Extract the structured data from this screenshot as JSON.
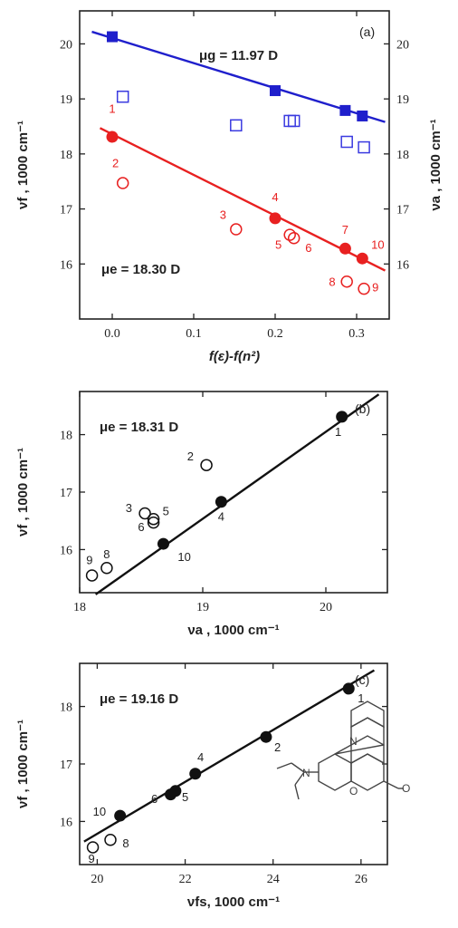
{
  "chart_data": [
    {
      "type": "scatter",
      "panel_label": "(a)",
      "xlabel": "f(ε)-f(n²)",
      "ylabel_left": "νf , 1000 cm⁻¹",
      "ylabel_right": "νa , 1000 cm⁻¹",
      "xlim": [
        -0.04,
        0.34
      ],
      "ylim": [
        15.0,
        20.6
      ],
      "xticks": [
        0.0,
        0.1,
        0.2,
        0.3
      ],
      "xtick_labels": [
        "0.0",
        "0.1",
        "0.2",
        "0.3"
      ],
      "yticks": [
        16,
        17,
        18,
        19,
        20
      ],
      "ytick_labels": [
        "16",
        "17",
        "18",
        "19",
        "20"
      ],
      "annotations": [
        "μg = 11.97 D",
        "μe = 18.30 D"
      ],
      "series": [
        {
          "name": "",
          "marker": "filled-square",
          "color": "#1f1fcc",
          "x": [
            0.0,
            0.2,
            0.286,
            0.307
          ],
          "y": [
            20.13,
            19.15,
            18.79,
            18.69
          ]
        },
        {
          "name": "",
          "marker": "open-square",
          "color": "#3a3ae0",
          "x": [
            0.013,
            0.152,
            0.218,
            0.223,
            0.288,
            0.309
          ],
          "y": [
            19.04,
            18.52,
            18.6,
            18.6,
            18.22,
            18.12
          ]
        },
        {
          "name": "",
          "marker": "filled-circle",
          "color": "#e82020",
          "x": [
            0.0,
            0.2,
            0.286,
            0.307
          ],
          "y": [
            18.31,
            16.83,
            16.28,
            16.1
          ]
        },
        {
          "name": "",
          "marker": "open-circle",
          "color": "#e82020",
          "x": [
            0.013,
            0.152,
            0.218,
            0.223,
            0.288,
            0.309
          ],
          "y": [
            17.47,
            16.63,
            16.53,
            16.47,
            15.68,
            15.55
          ]
        }
      ],
      "fit_lines": [
        {
          "color": "#1f1fcc",
          "x": [
            -0.025,
            0.335
          ],
          "y": [
            20.22,
            18.58
          ]
        },
        {
          "color": "#e82020",
          "x": [
            -0.015,
            0.335
          ],
          "y": [
            18.47,
            15.88
          ]
        }
      ],
      "point_labels": [
        {
          "text": "1",
          "x": 0.0,
          "y": 18.75
        },
        {
          "text": "2",
          "x": 0.004,
          "y": 17.76
        },
        {
          "text": "3",
          "x": 0.136,
          "y": 16.82
        },
        {
          "text": "4",
          "x": 0.2,
          "y": 17.14
        },
        {
          "text": "5",
          "x": 0.204,
          "y": 16.28
        },
        {
          "text": "6",
          "x": 0.241,
          "y": 16.22
        },
        {
          "text": "7",
          "x": 0.286,
          "y": 16.55
        },
        {
          "text": "10",
          "x": 0.326,
          "y": 16.28
        },
        {
          "text": "8",
          "x": 0.27,
          "y": 15.6
        },
        {
          "text": "9",
          "x": 0.323,
          "y": 15.5
        }
      ]
    },
    {
      "type": "scatter",
      "panel_label": "(b)",
      "xlabel": "νa , 1000 cm⁻¹",
      "ylabel": "νf , 1000 cm⁻¹",
      "xlim": [
        18.0,
        20.5
      ],
      "ylim": [
        15.25,
        18.75
      ],
      "xticks": [
        18,
        19,
        20
      ],
      "xtick_labels": [
        "18",
        "19",
        "20"
      ],
      "yticks": [
        16,
        17,
        18
      ],
      "ytick_labels": [
        "16",
        "17",
        "18"
      ],
      "annotations": [
        "μe = 18.31 D"
      ],
      "series": [
        {
          "name": "",
          "marker": "filled-circle",
          "color": "#111111",
          "x": [
            20.13,
            19.15,
            18.68
          ],
          "y": [
            18.31,
            16.83,
            16.1
          ]
        },
        {
          "name": "",
          "marker": "open-circle",
          "color": "#111111",
          "x": [
            19.03,
            18.53,
            18.6,
            18.6,
            18.22,
            18.1
          ],
          "y": [
            17.47,
            16.63,
            16.53,
            16.47,
            15.68,
            15.55
          ]
        }
      ],
      "fit_lines": [
        {
          "color": "#111111",
          "x": [
            18.13,
            20.43
          ],
          "y": [
            15.22,
            18.7
          ]
        }
      ],
      "point_labels": [
        {
          "text": "1",
          "x": 20.1,
          "y": 17.98
        },
        {
          "text": "2",
          "x": 18.9,
          "y": 17.55
        },
        {
          "text": "3",
          "x": 18.4,
          "y": 16.65
        },
        {
          "text": "5",
          "x": 18.7,
          "y": 16.6
        },
        {
          "text": "6",
          "x": 18.5,
          "y": 16.32
        },
        {
          "text": "4",
          "x": 19.15,
          "y": 16.5
        },
        {
          "text": "10",
          "x": 18.85,
          "y": 15.8
        },
        {
          "text": "8",
          "x": 18.22,
          "y": 15.85
        },
        {
          "text": "9",
          "x": 18.08,
          "y": 15.75
        }
      ]
    },
    {
      "type": "scatter",
      "panel_label": "(c)",
      "xlabel": "νfs, 1000 cm⁻¹",
      "ylabel": "νf , 1000 cm⁻¹",
      "xlim": [
        19.6,
        26.6
      ],
      "ylim": [
        15.25,
        18.75
      ],
      "xticks": [
        20,
        22,
        24,
        26
      ],
      "xtick_labels": [
        "20",
        "22",
        "24",
        "26"
      ],
      "yticks": [
        16,
        17,
        18
      ],
      "ytick_labels": [
        "16",
        "17",
        "18"
      ],
      "annotations": [
        "μe = 19.16 D"
      ],
      "series": [
        {
          "name": "",
          "marker": "filled-circle",
          "color": "#111111",
          "x": [
            25.72,
            23.84,
            22.23,
            21.78,
            21.67,
            20.52
          ],
          "y": [
            18.31,
            17.47,
            16.83,
            16.53,
            16.47,
            16.1
          ]
        },
        {
          "name": "",
          "marker": "open-circle",
          "color": "#111111",
          "x": [
            20.3,
            19.9
          ],
          "y": [
            15.68,
            15.55
          ]
        }
      ],
      "fit_lines": [
        {
          "color": "#111111",
          "x": [
            19.7,
            26.3
          ],
          "y": [
            15.65,
            18.63
          ]
        }
      ],
      "point_labels": [
        {
          "text": "1",
          "x": 26.0,
          "y": 18.07
        },
        {
          "text": "2",
          "x": 24.1,
          "y": 17.22
        },
        {
          "text": "4",
          "x": 22.35,
          "y": 17.05
        },
        {
          "text": "5",
          "x": 22.0,
          "y": 16.35
        },
        {
          "text": "6",
          "x": 21.3,
          "y": 16.32
        },
        {
          "text": "10",
          "x": 20.05,
          "y": 16.1
        },
        {
          "text": "8",
          "x": 20.65,
          "y": 15.55
        },
        {
          "text": "9",
          "x": 19.87,
          "y": 15.28
        }
      ]
    }
  ]
}
